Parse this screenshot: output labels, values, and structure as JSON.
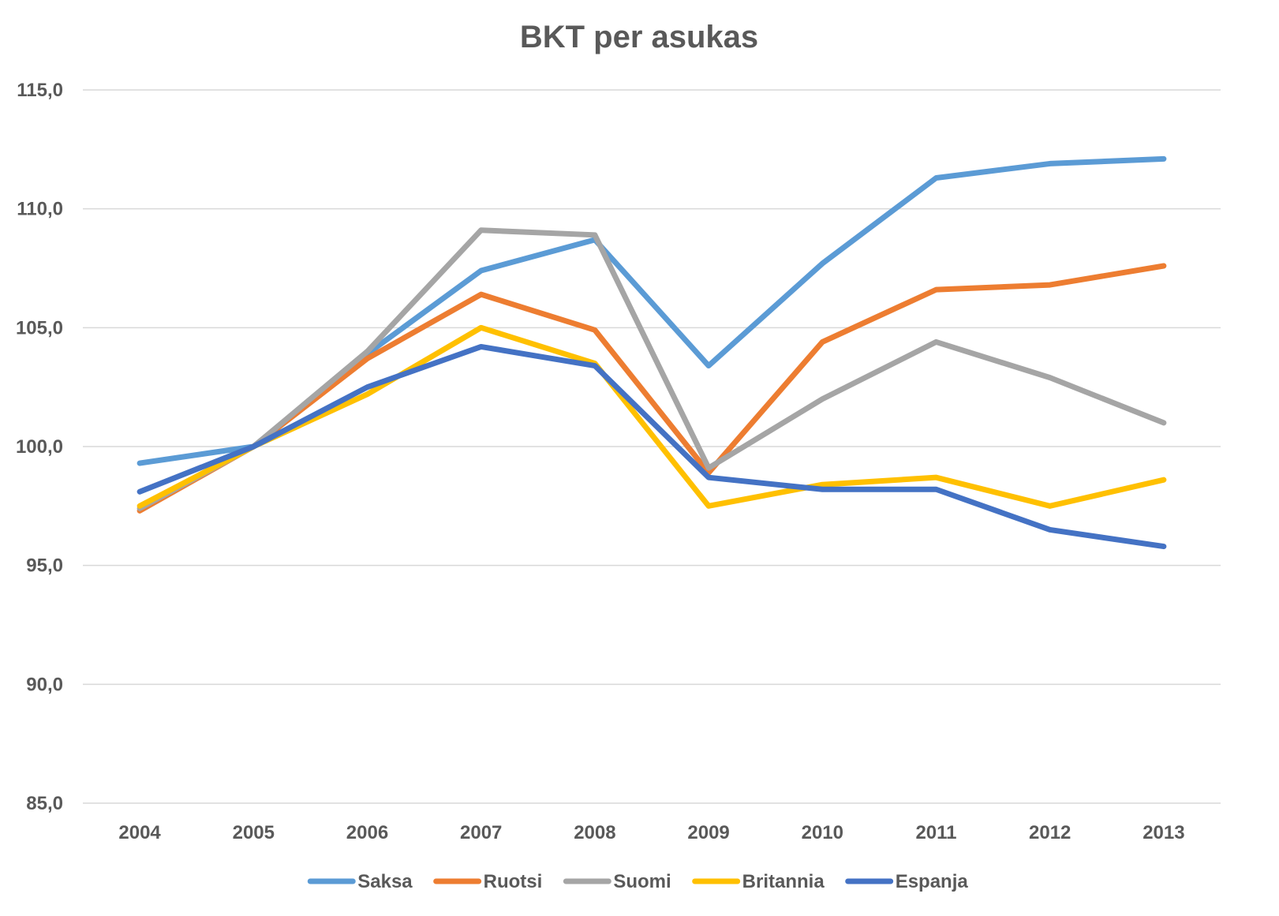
{
  "chart_data": {
    "type": "line",
    "title": "BKT per asukas",
    "xlabel": "",
    "ylabel": "",
    "categories": [
      "2004",
      "2005",
      "2006",
      "2007",
      "2008",
      "2009",
      "2010",
      "2011",
      "2012",
      "2013"
    ],
    "ylim": [
      85,
      115
    ],
    "y_ticks": [
      85,
      90,
      95,
      100,
      105,
      110,
      115
    ],
    "y_tick_labels": [
      "85,0",
      "90,0",
      "95,0",
      "100,0",
      "105,0",
      "110,0",
      "115,0"
    ],
    "grid": true,
    "legend_position": "bottom",
    "series": [
      {
        "name": "Saksa",
        "color": "#5B9BD5",
        "values": [
          99.3,
          100.0,
          103.9,
          107.4,
          108.7,
          103.4,
          107.7,
          111.3,
          111.9,
          112.1
        ]
      },
      {
        "name": "Ruotsi",
        "color": "#ED7D31",
        "values": [
          97.3,
          100.0,
          103.7,
          106.4,
          104.9,
          98.9,
          104.4,
          106.6,
          106.8,
          107.6
        ]
      },
      {
        "name": "Suomi",
        "color": "#A5A5A5",
        "values": [
          97.4,
          100.0,
          104.0,
          109.1,
          108.9,
          99.1,
          102.0,
          104.4,
          102.9,
          101.0
        ]
      },
      {
        "name": "Britannia",
        "color": "#FFC000",
        "values": [
          97.5,
          100.0,
          102.2,
          105.0,
          103.5,
          97.5,
          98.4,
          98.7,
          97.5,
          98.6
        ]
      },
      {
        "name": "Espanja",
        "color": "#4472C4",
        "values": [
          98.1,
          100.0,
          102.5,
          104.2,
          103.4,
          98.7,
          98.2,
          98.2,
          96.5,
          95.8
        ]
      }
    ]
  }
}
